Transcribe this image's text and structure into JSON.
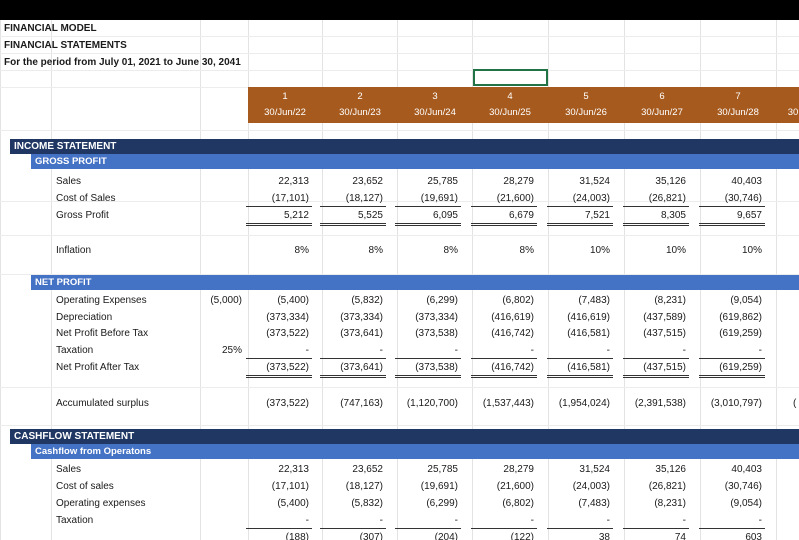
{
  "title": {
    "line1": "FINANCIAL MODEL",
    "line2": "FINANCIAL STATEMENTS",
    "line3": "For the period from July 01, 2021 to June 30, 2041"
  },
  "colors": {
    "period_header": "#A65A1E",
    "section_header": "#203764",
    "subsection_header": "#4472C4",
    "selection": "#217346"
  },
  "periods": [
    {
      "num": "1",
      "date": "30/Jun/22"
    },
    {
      "num": "2",
      "date": "30/Jun/23"
    },
    {
      "num": "3",
      "date": "30/Jun/24"
    },
    {
      "num": "4",
      "date": "30/Jun/25"
    },
    {
      "num": "5",
      "date": "30/Jun/26"
    },
    {
      "num": "6",
      "date": "30/Jun/27"
    },
    {
      "num": "7",
      "date": "30/Jun/28"
    },
    {
      "num": "",
      "date": "30"
    }
  ],
  "income": {
    "header": "INCOME STATEMENT",
    "gross_header": "GROSS PROFIT",
    "rows": {
      "sales": {
        "label": "Sales",
        "values": [
          "22,313",
          "23,652",
          "25,785",
          "28,279",
          "31,524",
          "35,126",
          "40,403"
        ]
      },
      "cost": {
        "label": "Cost of Sales",
        "values": [
          "(17,101)",
          "(18,127)",
          "(19,691)",
          "(21,600)",
          "(24,003)",
          "(26,821)",
          "(30,746)"
        ]
      },
      "gross": {
        "label": "Gross Profit",
        "values": [
          "5,212",
          "5,525",
          "6,095",
          "6,679",
          "7,521",
          "8,305",
          "9,657"
        ]
      },
      "inflation": {
        "label": "Inflation",
        "values": [
          "8%",
          "8%",
          "8%",
          "8%",
          "10%",
          "10%",
          "10%"
        ]
      }
    },
    "net_header": "NET PROFIT",
    "net_rows": {
      "opex": {
        "label": "Operating Expenses",
        "pre": "(5,000)",
        "values": [
          "(5,400)",
          "(5,832)",
          "(6,299)",
          "(6,802)",
          "(7,483)",
          "(8,231)",
          "(9,054)"
        ]
      },
      "dep": {
        "label": "Depreciation",
        "values": [
          "(373,334)",
          "(373,334)",
          "(373,334)",
          "(416,619)",
          "(416,619)",
          "(437,589)",
          "(619,862)"
        ]
      },
      "npbt": {
        "label": "Net Profit Before Tax",
        "values": [
          "(373,522)",
          "(373,641)",
          "(373,538)",
          "(416,742)",
          "(416,581)",
          "(437,515)",
          "(619,259)"
        ]
      },
      "tax": {
        "label": "Taxation",
        "pre": "25%",
        "values": [
          "-",
          "-",
          "-",
          "-",
          "-",
          "-",
          "-"
        ]
      },
      "npat": {
        "label": "Net Profit After Tax",
        "values": [
          "(373,522)",
          "(373,641)",
          "(373,538)",
          "(416,742)",
          "(416,581)",
          "(437,515)",
          "(619,259)"
        ]
      },
      "accum": {
        "label": "Accumulated surplus",
        "values": [
          "(373,522)",
          "(747,163)",
          "(1,120,700)",
          "(1,537,443)",
          "(1,954,024)",
          "(2,391,538)",
          "(3,010,797)"
        ],
        "overflow": "("
      }
    }
  },
  "cashflow": {
    "header": "CASHFLOW STATEMENT",
    "ops_header": "Cashflow from Operatons",
    "rows": {
      "sales": {
        "label": "Sales",
        "values": [
          "22,313",
          "23,652",
          "25,785",
          "28,279",
          "31,524",
          "35,126",
          "40,403"
        ]
      },
      "cost": {
        "label": "Cost of sales",
        "values": [
          "(17,101)",
          "(18,127)",
          "(19,691)",
          "(21,600)",
          "(24,003)",
          "(26,821)",
          "(30,746)"
        ]
      },
      "opex": {
        "label": "Operating expenses",
        "values": [
          "(5,400)",
          "(5,832)",
          "(6,299)",
          "(6,802)",
          "(7,483)",
          "(8,231)",
          "(9,054)"
        ]
      },
      "tax": {
        "label": "Taxation",
        "values": [
          "-",
          "-",
          "-",
          "-",
          "-",
          "-",
          "-"
        ]
      },
      "partial": {
        "label": "",
        "values": [
          "(188)",
          "(307)",
          "(204)",
          "(122)",
          "38",
          "74",
          "603"
        ]
      }
    }
  }
}
